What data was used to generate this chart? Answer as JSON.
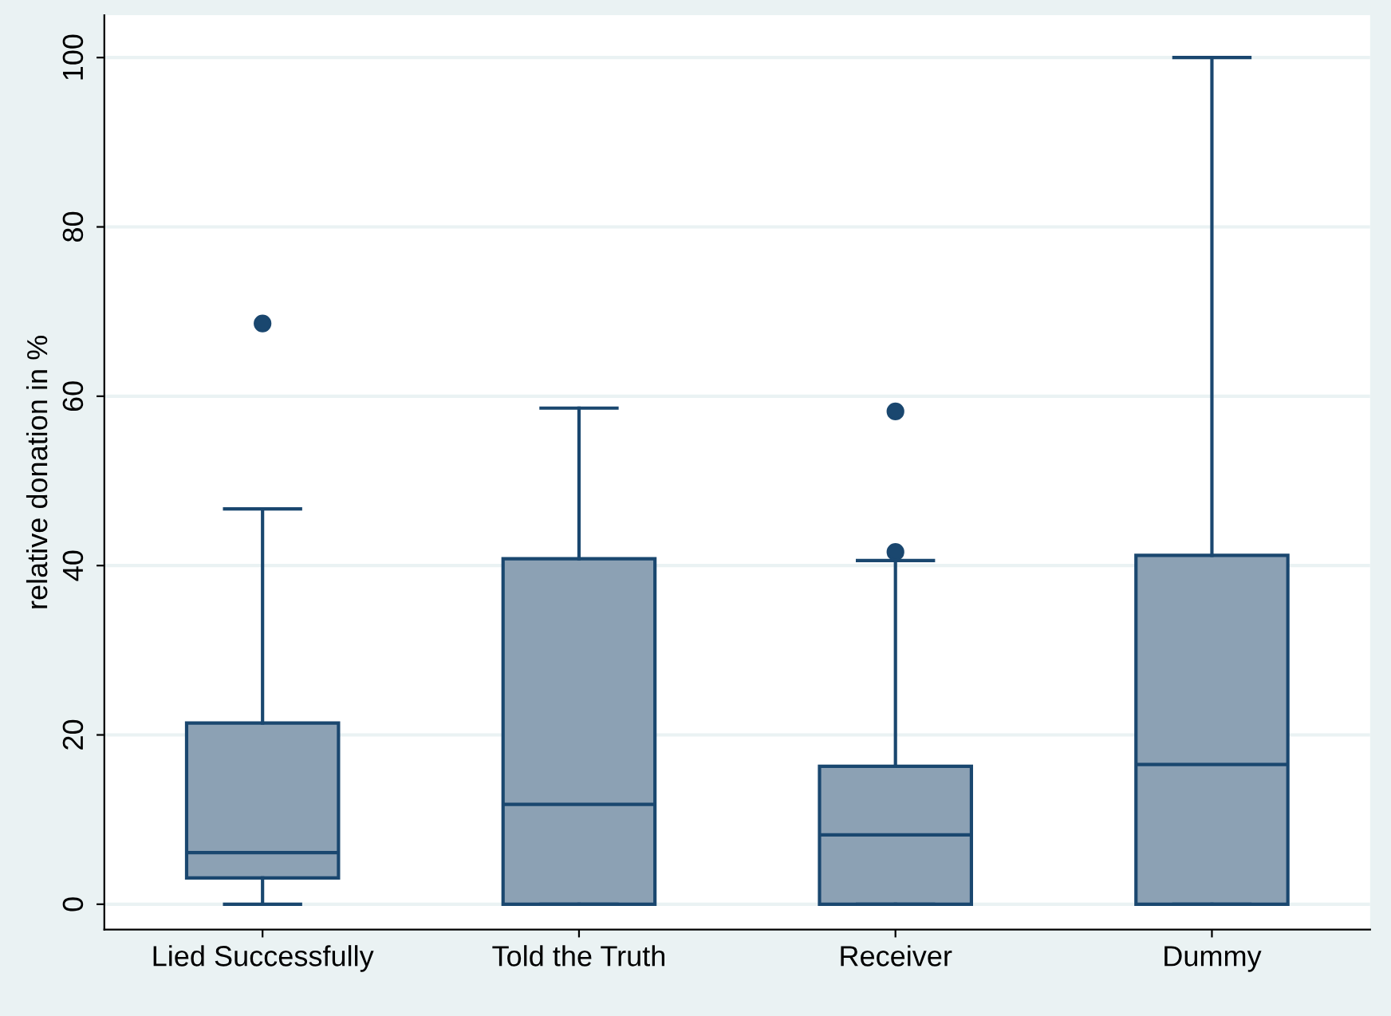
{
  "chart_data": {
    "type": "box",
    "ylabel": "relative donation in %",
    "categories": [
      "Lied Successfully",
      "Told the Truth",
      "Receiver",
      "Dummy"
    ],
    "boxes": [
      {
        "low": 0,
        "q1": 3.1,
        "median": 6.1,
        "q3": 21.4,
        "high": 46.7,
        "outliers": [
          68.6
        ]
      },
      {
        "low": 0,
        "q1": 0,
        "median": 11.8,
        "q3": 40.8,
        "high": 58.6
      },
      {
        "low": 0,
        "q1": 0,
        "median": 8.2,
        "q3": 16.3,
        "high": 40.6,
        "outliers": [
          41.6,
          58.2
        ]
      },
      {
        "low": 0,
        "q1": 0,
        "median": 16.5,
        "q3": 41.2,
        "high": 100
      }
    ],
    "color": "#8ca1b4",
    "ylim": [
      -3,
      105
    ],
    "yticks": [
      0,
      20,
      40,
      60,
      80,
      100
    ],
    "grid": "y",
    "legend": false
  }
}
